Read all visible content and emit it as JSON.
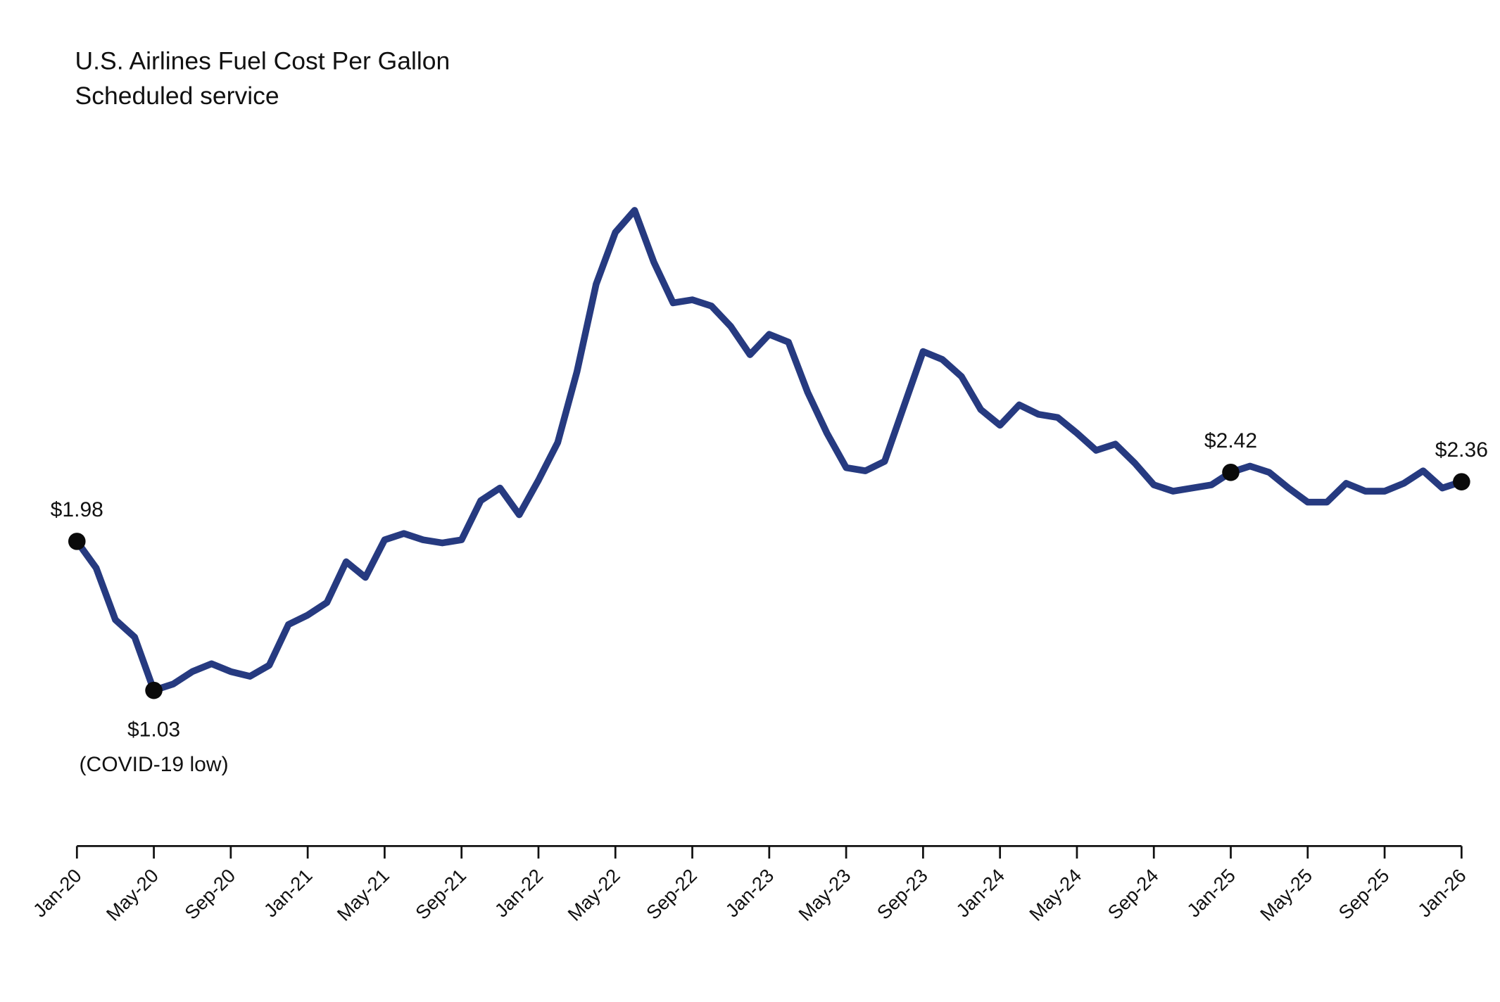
{
  "chart_data": {
    "type": "line",
    "title": "U.S. Airlines Fuel Cost Per Gallon",
    "subtitle": "Scheduled service",
    "xlabel": "",
    "ylabel": "",
    "unit": "USD per gallon",
    "grid": false,
    "line_color": "#263a80",
    "marker_color": "#0a0a0a",
    "x_tick_labels": [
      "Jan-20",
      "May-20",
      "Sep-20",
      "Jan-21",
      "May-21",
      "Sep-21",
      "Jan-22",
      "May-22",
      "Sep-22",
      "Jan-23",
      "May-23",
      "Sep-23",
      "Jan-24",
      "May-24",
      "Sep-24",
      "Jan-25",
      "May-25",
      "Sep-25",
      "Jan-26"
    ],
    "x_start": "Jan-2020",
    "x_frequency": "monthly",
    "values": [
      1.98,
      1.81,
      1.48,
      1.37,
      1.03,
      1.07,
      1.15,
      1.2,
      1.15,
      1.12,
      1.19,
      1.45,
      1.51,
      1.59,
      1.85,
      1.75,
      1.99,
      2.03,
      1.99,
      1.97,
      1.99,
      2.24,
      2.32,
      2.15,
      2.37,
      2.61,
      3.06,
      3.62,
      3.95,
      4.09,
      3.76,
      3.5,
      3.52,
      3.48,
      3.35,
      3.17,
      3.3,
      3.25,
      2.93,
      2.67,
      2.45,
      2.43,
      2.49,
      2.84,
      3.19,
      3.14,
      3.03,
      2.82,
      2.72,
      2.85,
      2.79,
      2.77,
      2.67,
      2.56,
      2.6,
      2.48,
      2.34,
      2.3,
      2.32,
      2.34,
      2.42,
      2.46,
      2.42,
      2.32,
      2.23,
      2.23,
      2.35,
      2.3,
      2.3,
      2.35,
      2.43,
      2.32,
      2.36
    ],
    "annotations": [
      {
        "index": 0,
        "label": "$1.98",
        "sublabel": "",
        "position": "above"
      },
      {
        "index": 4,
        "label": "$1.03",
        "sublabel": "(COVID-19 low)",
        "position": "below"
      },
      {
        "index": 60,
        "label": "$2.42",
        "sublabel": "",
        "position": "above"
      },
      {
        "index": 72,
        "label": "$2.36",
        "sublabel": "",
        "position": "above"
      }
    ]
  }
}
